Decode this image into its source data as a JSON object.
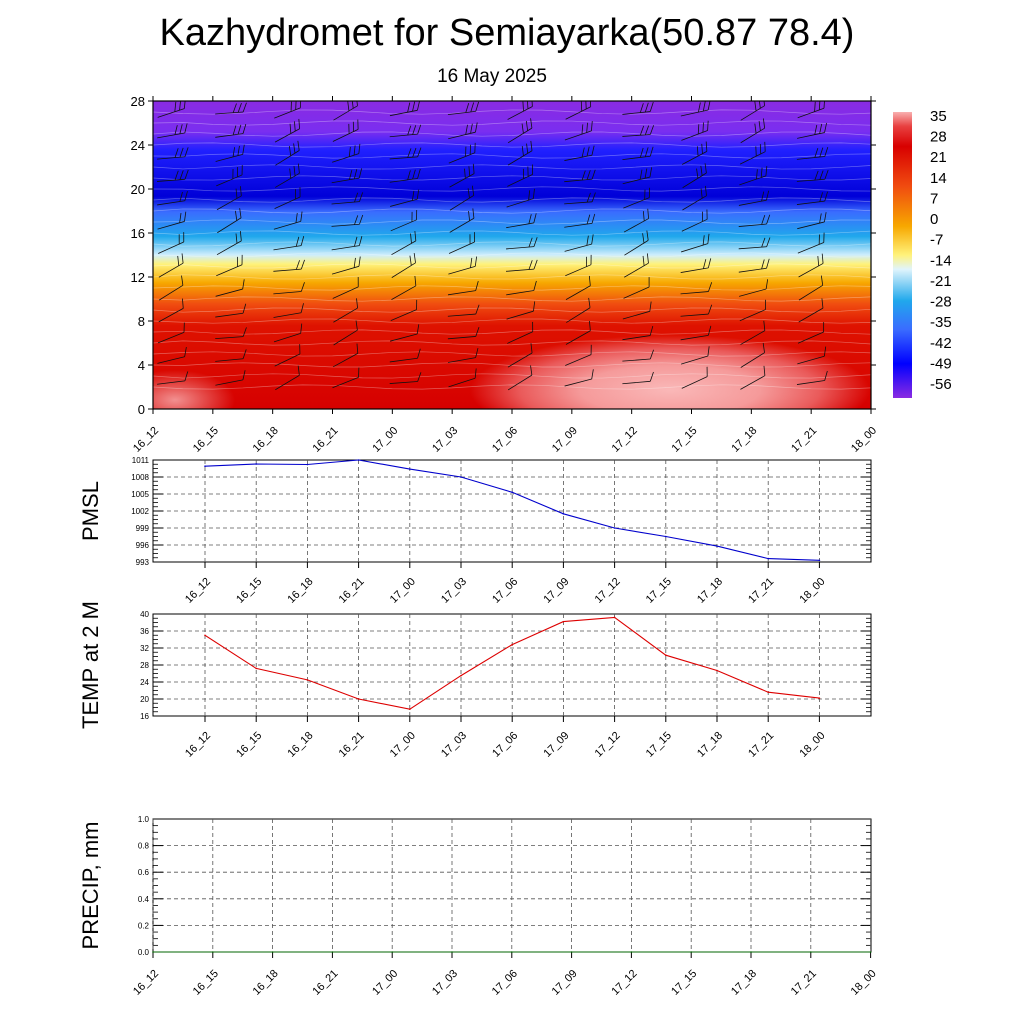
{
  "title": "Kazhydromet for Semiayarka(50.87 78.4)",
  "subtitle": "16 May 2025",
  "chart_data": [
    {
      "type": "heatmap",
      "ylim": [
        0,
        28
      ],
      "y_ticks": [
        "0",
        "4",
        "8",
        "12",
        "16",
        "20",
        "24",
        "28"
      ],
      "x_ticks": [
        "16_12",
        "16_15",
        "16_18",
        "16_21",
        "17_00",
        "17_03",
        "17_06",
        "17_09",
        "17_12",
        "17_15",
        "17_18",
        "17_21",
        "18_00"
      ],
      "colorbar_labels": [
        "35",
        "28",
        "21",
        "14",
        "7",
        "0",
        "-7",
        "-14",
        "-21",
        "-28",
        "-35",
        "-42",
        "-49",
        "-56"
      ],
      "colorbar_range": [
        -60,
        38
      ],
      "wind_barbs": true,
      "colors": {
        "hot_max": "#f9b0b0",
        "hot": "#d80000",
        "warm": "#f03010",
        "orange": "#f48a00",
        "yellow": "#fff280",
        "cold_light": "#cceeff",
        "cyan": "#22aaee",
        "blue": "#1a1aff",
        "deep_blue": "#0000cc",
        "purple": "#8a2be2"
      }
    },
    {
      "type": "line",
      "ylabel": "PMSL",
      "ylim": [
        993,
        1011
      ],
      "y_ticks": [
        "993",
        "996",
        "999",
        "1002",
        "1005",
        "1008",
        "1011"
      ],
      "x": [
        "16_12",
        "16_15",
        "16_18",
        "16_21",
        "17_00",
        "17_03",
        "17_06",
        "17_09",
        "17_12",
        "17_15",
        "17_18",
        "17_21",
        "18_00"
      ],
      "values": [
        1009.9,
        1010.3,
        1010.2,
        1011.0,
        1009.4,
        1008.0,
        1005.3,
        1001.5,
        999.0,
        997.5,
        995.8,
        993.6,
        993.3
      ],
      "grid": true,
      "line_color": "#0000cc"
    },
    {
      "type": "line",
      "ylabel": "TEMP at 2 M",
      "ylim": [
        16,
        40
      ],
      "y_ticks": [
        "16",
        "20",
        "24",
        "28",
        "32",
        "36",
        "40"
      ],
      "x": [
        "16_12",
        "16_15",
        "16_18",
        "16_21",
        "17_00",
        "17_03",
        "17_06",
        "17_09",
        "17_12",
        "17_15",
        "17_18",
        "17_21",
        "18_00"
      ],
      "values": [
        35.0,
        27.2,
        24.5,
        20.0,
        17.6,
        25.5,
        32.8,
        38.2,
        39.2,
        30.3,
        26.7,
        21.6,
        20.2
      ],
      "grid": true,
      "line_color": "#dd0000"
    },
    {
      "type": "line",
      "ylabel": "PRECIP, mm",
      "ylim": [
        0,
        1
      ],
      "y_ticks": [
        "0.0",
        "0.2",
        "0.4",
        "0.6",
        "0.8",
        "1.0"
      ],
      "x_ticks": [
        "16_12",
        "16_15",
        "16_18",
        "16_21",
        "17_00",
        "17_03",
        "17_06",
        "17_09",
        "17_12",
        "17_15",
        "17_18",
        "17_21",
        "18_00"
      ],
      "values": [
        0,
        0,
        0,
        0,
        0,
        0,
        0,
        0,
        0,
        0,
        0,
        0,
        0
      ],
      "grid": true,
      "line_color": "#006400"
    }
  ]
}
